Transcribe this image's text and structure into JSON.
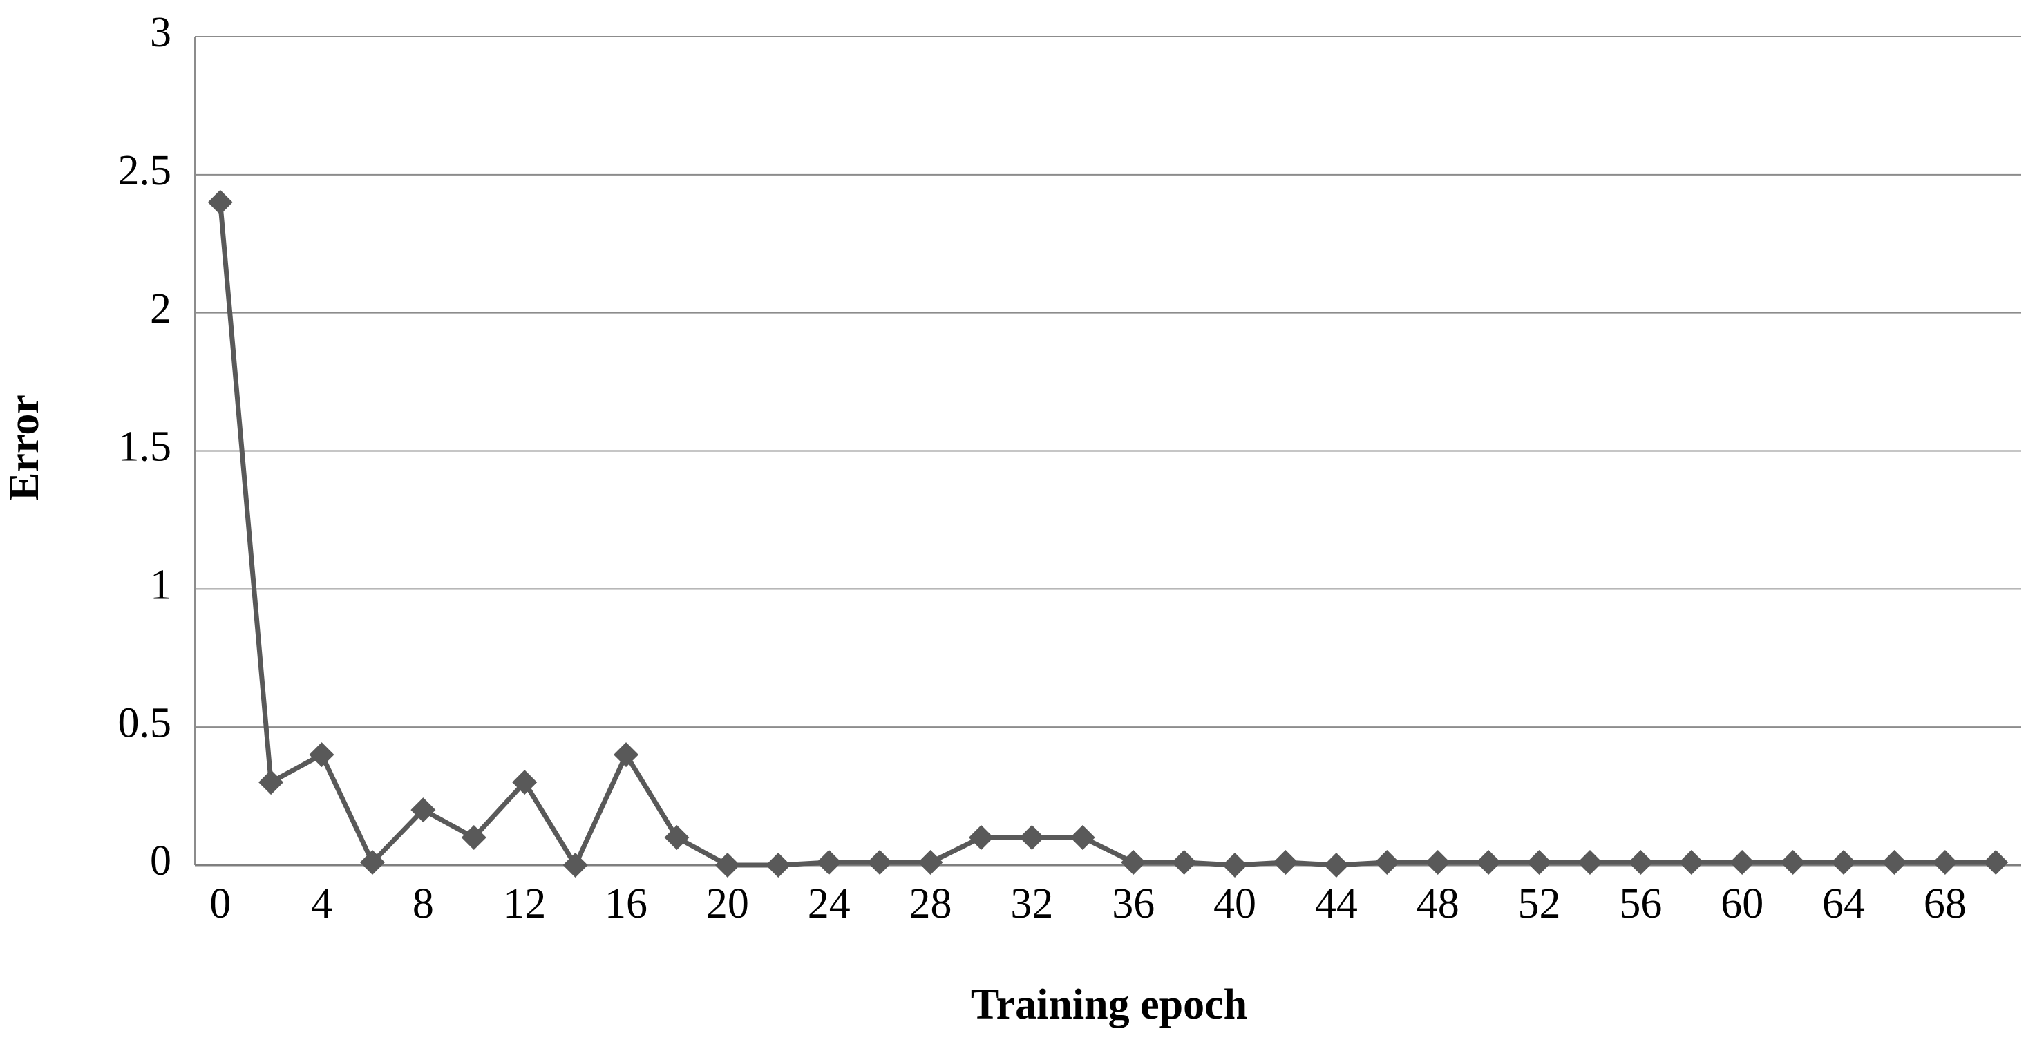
{
  "chart_data": {
    "type": "line",
    "x_label": "Training  epoch",
    "y_label": "Error",
    "categories": [
      "0",
      null,
      "4",
      null,
      "8",
      null,
      "12",
      null,
      "16",
      null,
      "20",
      null,
      "24",
      null,
      "28",
      null,
      "32",
      null,
      "36",
      null,
      "40",
      null,
      "44",
      null,
      "48",
      null,
      "52",
      null,
      "56",
      null,
      "60",
      null,
      "64",
      null,
      "68",
      null
    ],
    "series": [
      {
        "name": "Error",
        "color": "#595959",
        "values": [
          2.4,
          0.3,
          0.4,
          0.01,
          0.2,
          0.1,
          0.3,
          0,
          0.4,
          0.1,
          0,
          0,
          0.01,
          0.01,
          0.01,
          0.1,
          0.1,
          0.1,
          0.01,
          0.01,
          0,
          0.01,
          0,
          0.01,
          0.01,
          0.01,
          0.01,
          0.01,
          0.01,
          0.01,
          0.01,
          0.01,
          0.01,
          0.01,
          0.01,
          0.01
        ]
      }
    ],
    "ylim": [
      0,
      3
    ],
    "yticks": [
      0,
      0.5,
      1,
      1.5,
      2,
      2.5,
      3
    ],
    "grid": true,
    "marker": "diamond"
  }
}
